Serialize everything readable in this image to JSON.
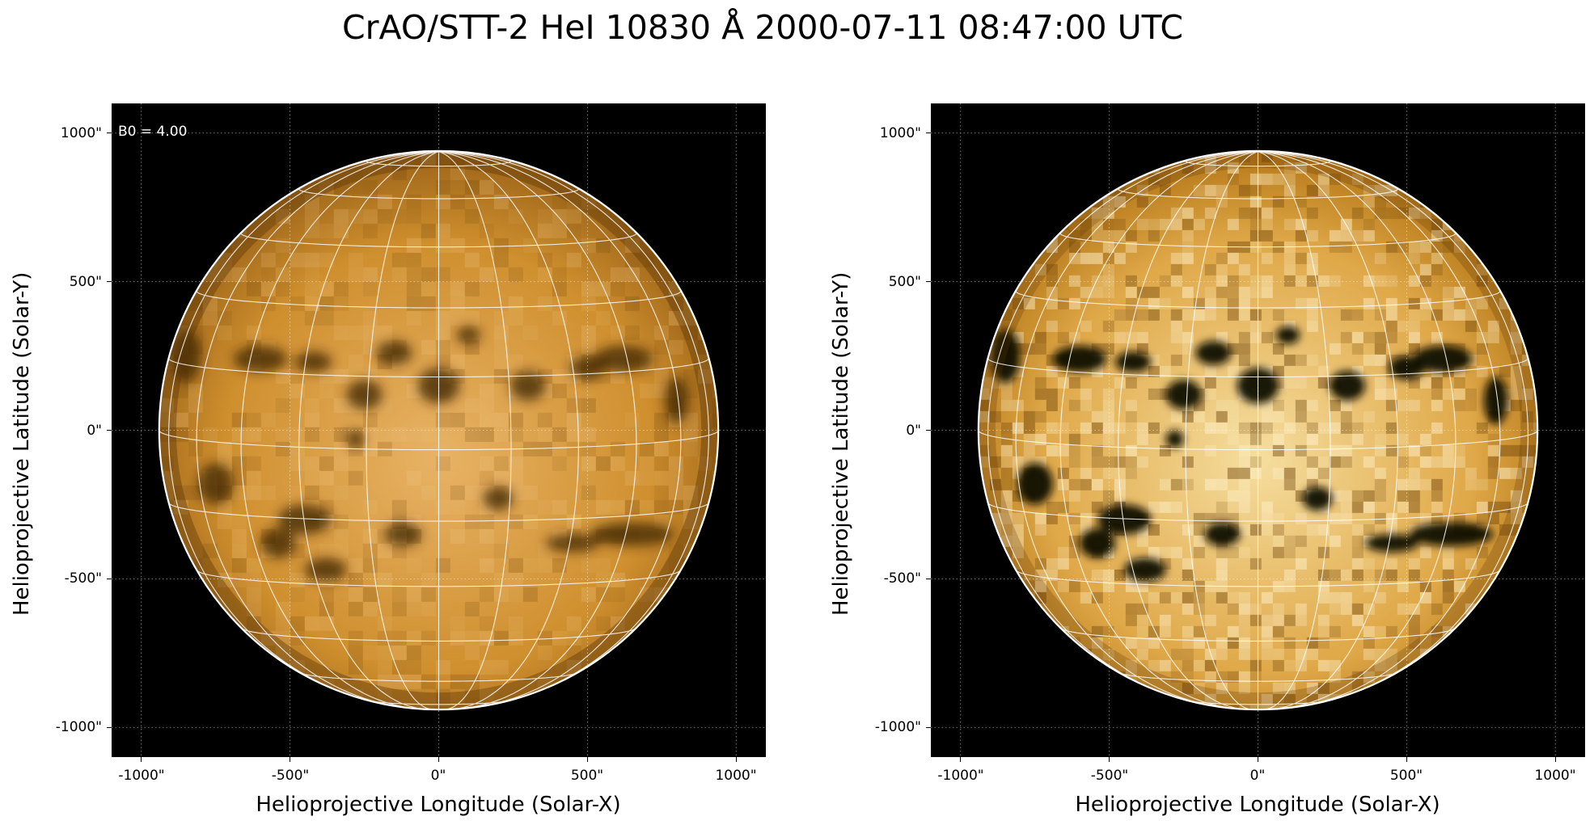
{
  "title": "CrAO/STT-2 HeI 10830 Å 2000-07-11 08:47:00 UTC",
  "colors": {
    "background": "#000000",
    "disk_base": "#c98a28",
    "disk_light": "#f0d08a",
    "grid": "#ffffff",
    "limb": "#ffffff"
  },
  "axis_extent_arcsec": [
    -1100,
    1100
  ],
  "solar_radius_arcsec": 940,
  "b0_deg": 4.0,
  "panels": [
    {
      "annotation": "B0 = 4.00",
      "xlabel": "Helioprojective Longitude (Solar-X)",
      "ylabel": "Helioprojective Latitude (Solar-Y)",
      "x_ticks": [
        "-1000\"",
        "-500\"",
        "0\"",
        "500\"",
        "1000\""
      ],
      "y_ticks": [
        "1000\"",
        "500\"",
        "0\"",
        "-500\"",
        "-1000\""
      ],
      "contrast": "normal"
    },
    {
      "annotation": "",
      "xlabel": "Helioprojective Longitude (Solar-X)",
      "ylabel": "Helioprojective Latitude (Solar-Y)",
      "x_ticks": [
        "-1000\"",
        "-500\"",
        "0\"",
        "500\"",
        "1000\""
      ],
      "y_ticks": [
        "1000\"",
        "500\"",
        "0\"",
        "-500\"",
        "-1000\""
      ],
      "contrast": "enhanced"
    }
  ]
}
